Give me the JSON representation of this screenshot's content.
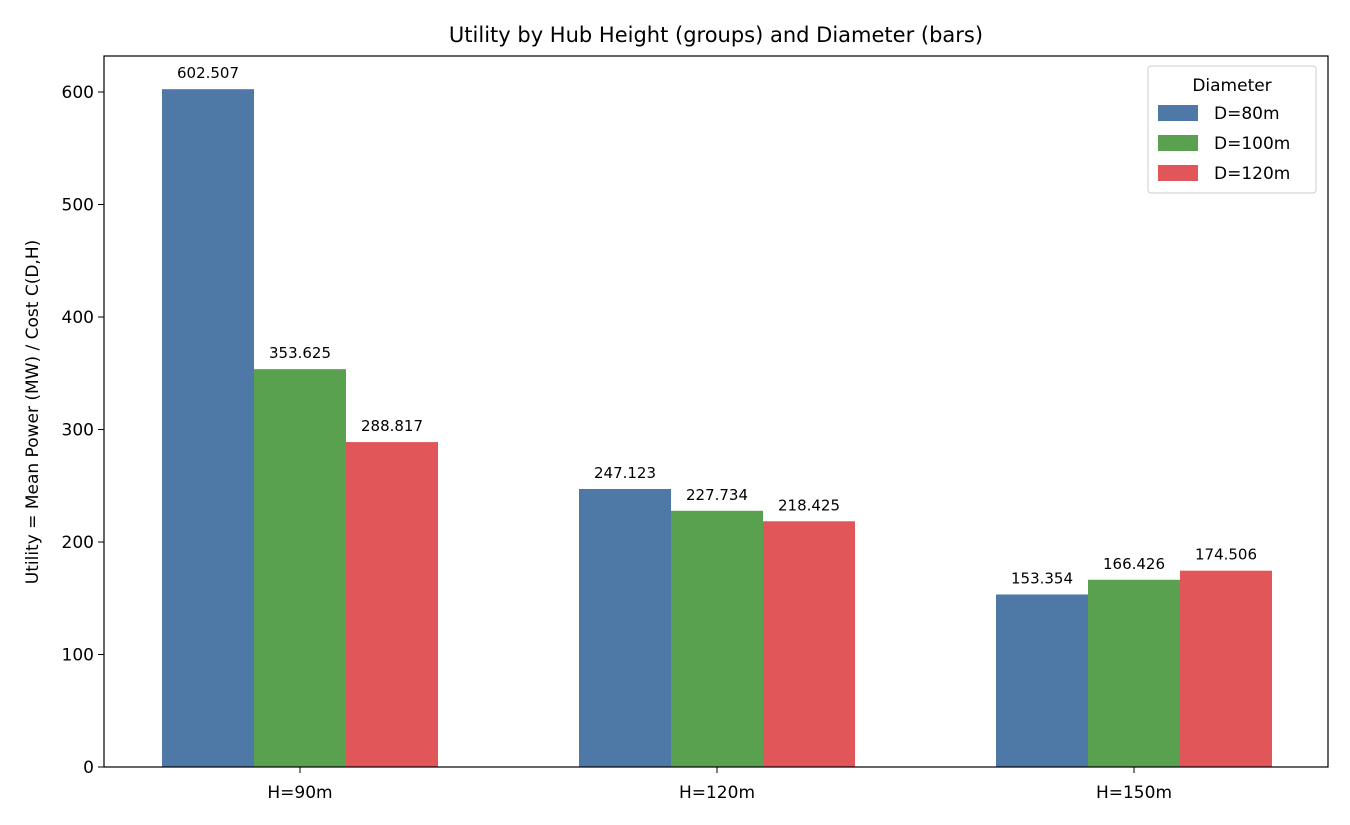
{
  "chart_data": {
    "type": "bar",
    "title": "Utility by Hub Height (groups) and Diameter (bars)",
    "xlabel": "",
    "ylabel": "Utility = Mean Power (MW) / Cost C(D,H)",
    "categories": [
      "H=90m",
      "H=120m",
      "H=150m"
    ],
    "series": [
      {
        "name": "D=80m",
        "color": "#4e79a7",
        "values": [
          602.507,
          247.123,
          153.354
        ]
      },
      {
        "name": "D=100m",
        "color": "#59a14f",
        "values": [
          353.625,
          227.734,
          166.426
        ]
      },
      {
        "name": "D=120m",
        "color": "#e15759",
        "values": [
          288.817,
          218.425,
          174.506
        ]
      }
    ],
    "ylim": [
      0,
      632
    ],
    "yticks": [
      0,
      100,
      200,
      300,
      400,
      500,
      600
    ],
    "legend": {
      "title": "Diameter",
      "placement": "top-right"
    },
    "grid": false
  }
}
